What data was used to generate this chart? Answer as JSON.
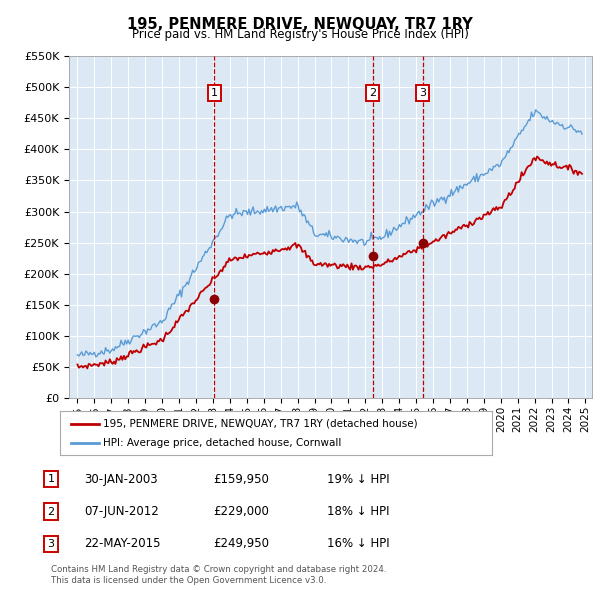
{
  "title": "195, PENMERE DRIVE, NEWQUAY, TR7 1RY",
  "subtitle": "Price paid vs. HM Land Registry's House Price Index (HPI)",
  "ylim": [
    0,
    550000
  ],
  "yticks": [
    0,
    50000,
    100000,
    150000,
    200000,
    250000,
    300000,
    350000,
    400000,
    450000,
    500000,
    550000
  ],
  "ytick_labels": [
    "£0",
    "£50K",
    "£100K",
    "£150K",
    "£200K",
    "£250K",
    "£300K",
    "£350K",
    "£400K",
    "£450K",
    "£500K",
    "£550K"
  ],
  "hpi_color": "#5b9bd5",
  "price_color": "#c00000",
  "marker_color": "#8b0000",
  "dashed_line_color": "#c00000",
  "plot_bg_color": "#dce9f5",
  "sale1_date": 2003.08,
  "sale1_price": 159950,
  "sale2_date": 2012.43,
  "sale2_price": 229000,
  "sale3_date": 2015.38,
  "sale3_price": 249950,
  "footer_line1": "Contains HM Land Registry data © Crown copyright and database right 2024.",
  "footer_line2": "This data is licensed under the Open Government Licence v3.0.",
  "table_rows": [
    {
      "num": "1",
      "date": "30-JAN-2003",
      "price": "£159,950",
      "hpi": "19% ↓ HPI"
    },
    {
      "num": "2",
      "date": "07-JUN-2012",
      "price": "£229,000",
      "hpi": "18% ↓ HPI"
    },
    {
      "num": "3",
      "date": "22-MAY-2015",
      "price": "£249,950",
      "hpi": "16% ↓ HPI"
    }
  ],
  "legend_label1": "195, PENMERE DRIVE, NEWQUAY, TR7 1RY (detached house)",
  "legend_label2": "HPI: Average price, detached house, Cornwall",
  "box_labels": [
    "1",
    "2",
    "3"
  ],
  "num_box_color": "#cc0000",
  "xtick_years": [
    1995,
    1996,
    1997,
    1998,
    1999,
    2000,
    2001,
    2002,
    2003,
    2004,
    2005,
    2006,
    2007,
    2008,
    2009,
    2010,
    2011,
    2012,
    2013,
    2014,
    2015,
    2016,
    2017,
    2018,
    2019,
    2020,
    2021,
    2022,
    2023,
    2024,
    2025
  ]
}
